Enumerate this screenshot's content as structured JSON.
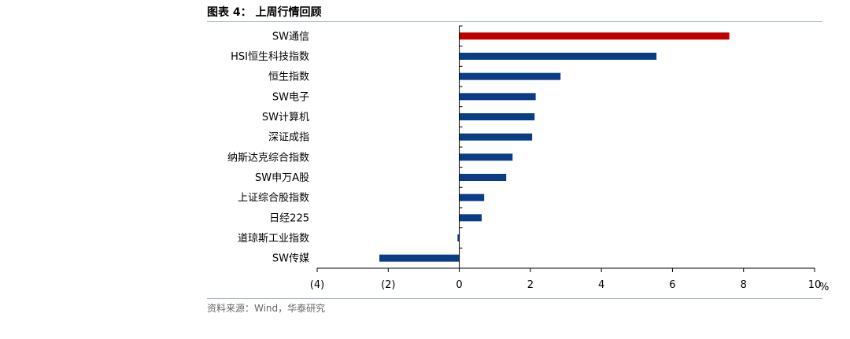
{
  "header": {
    "title": "图表 4：  上周行情回顾"
  },
  "footer": {
    "source": "资料来源：Wind，华泰研究"
  },
  "chart_data": {
    "type": "bar",
    "orientation": "horizontal",
    "categories": [
      "SW通信",
      "HSI恒生科技指数",
      "恒生指数",
      "SW电子",
      "SW计算机",
      "深证成指",
      "纳斯达克综合指数",
      "SW申万A股",
      "上证综合股指数",
      "日经225",
      "道琼斯工业指数",
      "SW传媒"
    ],
    "values": [
      7.6,
      5.55,
      2.85,
      2.15,
      2.12,
      2.05,
      1.5,
      1.32,
      0.7,
      0.63,
      -0.05,
      -2.25
    ],
    "bar_colors": [
      "#c00000",
      "#0b3d86",
      "#0b3d86",
      "#0b3d86",
      "#0b3d86",
      "#0b3d86",
      "#0b3d86",
      "#0b3d86",
      "#0b3d86",
      "#0b3d86",
      "#0b3d86",
      "#0b3d86"
    ],
    "xlim": [
      -4,
      10
    ],
    "xticks": [
      -4,
      -2,
      0,
      2,
      4,
      6,
      8,
      10
    ],
    "xtick_labels": [
      "(4)",
      "(2)",
      "0",
      "2",
      "4",
      "6",
      "8",
      "10"
    ],
    "unit": "%",
    "grid": false
  }
}
